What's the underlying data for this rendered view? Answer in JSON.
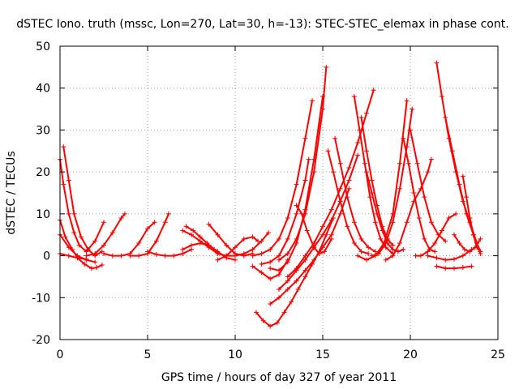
{
  "chart_data": {
    "type": "scatter",
    "title": "dSTEC Iono. truth (mssc, Lon=270, Lat=30, h=-13): STEC-STEC_elemax in phase cont.",
    "xlabel": "GPS time / hours of day 327 of year 2011",
    "ylabel": "dSTEC  / TECUs",
    "xlim": [
      0,
      25
    ],
    "ylim": [
      -20,
      50
    ],
    "xticks": [
      0,
      5,
      10,
      15,
      20,
      25
    ],
    "yticks": [
      -20,
      -10,
      0,
      10,
      20,
      30,
      40,
      50
    ],
    "grid": true,
    "legend": "none",
    "series_color": "#ff0000",
    "marker": "plus",
    "series": [
      {
        "x": [
          0.0,
          0.2,
          0.5,
          0.8,
          1.1,
          1.5,
          2.0,
          2.5
        ],
        "y": [
          23.0,
          17.0,
          10.0,
          5.5,
          2.5,
          1.0,
          3.5,
          8.0
        ]
      },
      {
        "x": [
          0.2,
          0.5,
          0.8,
          1.2,
          1.6,
          2.0,
          2.4
        ],
        "y": [
          26.0,
          18.0,
          10.0,
          4.5,
          1.5,
          0.0,
          1.0
        ]
      },
      {
        "x": [
          0.0,
          0.3,
          0.7,
          1.0,
          1.4,
          1.8,
          2.1,
          2.4
        ],
        "y": [
          8.5,
          4.5,
          1.5,
          -0.5,
          -2.0,
          -3.0,
          -2.8,
          -2.2
        ]
      },
      {
        "x": [
          0.0,
          0.5,
          1.0,
          1.5,
          2.0
        ],
        "y": [
          5.0,
          2.0,
          0.0,
          -1.0,
          -1.5
        ]
      },
      {
        "x": [
          0.0,
          0.5,
          1.0,
          1.5
        ],
        "y": [
          0.5,
          0.0,
          -0.5,
          -0.8
        ]
      },
      {
        "x": [
          1.5,
          2.0,
          2.5,
          3.0,
          3.5,
          3.7
        ],
        "y": [
          0.0,
          0.5,
          2.5,
          5.5,
          9.0,
          10.0
        ]
      },
      {
        "x": [
          2.5,
          3.0,
          3.5,
          4.0,
          4.5,
          5.0,
          5.4
        ],
        "y": [
          0.5,
          0.0,
          0.0,
          0.5,
          3.0,
          6.5,
          8.0
        ]
      },
      {
        "x": [
          4.0,
          4.5,
          5.0,
          5.5,
          6.0,
          6.2
        ],
        "y": [
          0.0,
          0.0,
          0.5,
          3.5,
          8.0,
          10.0
        ]
      },
      {
        "x": [
          5.0,
          5.5,
          6.0,
          6.5,
          7.0,
          7.5
        ],
        "y": [
          1.0,
          0.3,
          0.0,
          0.0,
          0.5,
          1.5
        ]
      },
      {
        "x": [
          7.0,
          7.5,
          8.0,
          8.5,
          9.0,
          9.5,
          10.0
        ],
        "y": [
          6.0,
          5.0,
          3.5,
          2.0,
          0.5,
          0.0,
          0.0
        ]
      },
      {
        "x": [
          7.2,
          7.6,
          8.0,
          8.4,
          8.8
        ],
        "y": [
          7.0,
          6.0,
          4.5,
          3.0,
          1.5
        ]
      },
      {
        "x": [
          8.5,
          9.0,
          9.5,
          10.0,
          10.5,
          11.0
        ],
        "y": [
          7.5,
          5.0,
          2.5,
          0.5,
          0.0,
          0.5
        ]
      },
      {
        "x": [
          7.0,
          7.5,
          8.0,
          8.5,
          9.0,
          9.5,
          10.0
        ],
        "y": [
          1.5,
          2.5,
          3.0,
          2.5,
          1.0,
          -0.5,
          -1.0
        ]
      },
      {
        "x": [
          9.0,
          9.5,
          10.0,
          10.5,
          11.0,
          11.3
        ],
        "y": [
          -1.0,
          0.0,
          2.0,
          4.0,
          4.5,
          3.5
        ]
      },
      {
        "x": [
          10.0,
          10.5,
          11.0,
          11.5,
          11.9
        ],
        "y": [
          0.0,
          0.5,
          1.5,
          3.5,
          5.5
        ]
      },
      {
        "x": [
          11.0,
          11.5,
          12.0,
          12.5,
          13.0,
          13.5,
          14.0,
          14.4
        ],
        "y": [
          0.0,
          0.5,
          1.5,
          4.0,
          9.0,
          17.0,
          28.0,
          37.0
        ]
      },
      {
        "x": [
          11.5,
          12.0,
          12.5,
          13.0,
          13.5,
          14.0,
          14.2
        ],
        "y": [
          -2.0,
          -1.5,
          0.0,
          4.0,
          10.0,
          18.0,
          23.0
        ]
      },
      {
        "x": [
          12.0,
          12.5,
          13.0,
          13.5,
          14.0,
          14.5,
          15.0
        ],
        "y": [
          -3.0,
          -3.5,
          -1.5,
          3.0,
          11.0,
          23.0,
          38.0
        ]
      },
      {
        "x": [
          12.5,
          13.0,
          13.5,
          14.0,
          14.5,
          15.0,
          15.2
        ],
        "y": [
          -1.0,
          0.5,
          4.0,
          10.0,
          20.0,
          35.0,
          45.0
        ]
      },
      {
        "x": [
          11.0,
          11.5,
          12.0,
          12.5,
          13.0
        ],
        "y": [
          -2.5,
          -4.0,
          -5.5,
          -4.5,
          -1.0
        ]
      },
      {
        "x": [
          11.2,
          11.6,
          12.0,
          12.4,
          12.8,
          13.2,
          13.6,
          14.0,
          14.4,
          14.8,
          15.2,
          15.6
        ],
        "y": [
          -13.5,
          -15.5,
          -16.8,
          -16.0,
          -13.5,
          -11.0,
          -8.0,
          -5.0,
          -2.0,
          1.0,
          5.0,
          9.0
        ]
      },
      {
        "x": [
          12.0,
          12.5,
          13.0,
          13.5,
          14.0,
          14.5,
          15.0,
          15.5,
          16.0,
          16.5
        ],
        "y": [
          -11.5,
          -10.0,
          -8.0,
          -6.0,
          -3.5,
          -1.0,
          2.0,
          5.0,
          10.0,
          16.0
        ]
      },
      {
        "x": [
          12.5,
          13.0,
          13.5,
          14.0,
          14.5,
          15.0,
          15.5,
          16.0,
          16.5,
          17.0
        ],
        "y": [
          -8.0,
          -6.0,
          -3.5,
          -1.0,
          2.0,
          5.0,
          8.5,
          13.0,
          18.0,
          24.0
        ]
      },
      {
        "x": [
          13.0,
          13.5,
          14.0,
          14.5,
          15.0,
          15.5,
          16.0,
          16.5,
          17.0,
          17.5,
          17.9
        ],
        "y": [
          -5.0,
          -3.0,
          0.0,
          3.0,
          7.0,
          11.0,
          16.0,
          21.0,
          27.0,
          34.0,
          39.5
        ]
      },
      {
        "x": [
          13.5,
          13.8,
          14.1,
          14.5,
          14.8,
          15.1,
          15.5
        ],
        "y": [
          12.0,
          10.0,
          6.0,
          2.0,
          0.5,
          1.0,
          4.0
        ]
      },
      {
        "x": [
          15.3,
          15.6,
          16.0,
          16.4,
          16.8,
          17.2,
          17.6
        ],
        "y": [
          25.0,
          20.0,
          13.0,
          7.0,
          3.0,
          1.0,
          0.5
        ]
      },
      {
        "x": [
          15.7,
          16.0,
          16.4,
          16.8,
          17.2,
          17.6,
          18.0
        ],
        "y": [
          28.0,
          22.0,
          14.0,
          8.0,
          4.0,
          2.0,
          1.0
        ]
      },
      {
        "x": [
          16.8,
          17.1,
          17.4,
          17.7,
          18.0,
          18.3,
          18.6,
          19.0
        ],
        "y": [
          38.0,
          30.0,
          22.0,
          14.0,
          8.0,
          4.0,
          2.0,
          0.5
        ]
      },
      {
        "x": [
          17.2,
          17.5,
          17.8,
          18.1,
          18.4,
          18.7,
          19.0
        ],
        "y": [
          33.0,
          25.0,
          18.0,
          12.0,
          7.0,
          4.0,
          2.5
        ]
      },
      {
        "x": [
          17.5,
          17.8,
          18.1,
          18.4,
          18.7,
          19.0,
          19.3,
          19.6
        ],
        "y": [
          20.0,
          15.0,
          10.0,
          6.0,
          3.0,
          1.5,
          1.0,
          1.5
        ]
      },
      {
        "x": [
          17.0,
          17.5,
          18.0,
          18.5,
          19.0,
          19.4,
          19.8
        ],
        "y": [
          0.0,
          -1.0,
          0.0,
          3.0,
          10.0,
          22.0,
          37.0
        ]
      },
      {
        "x": [
          17.8,
          18.2,
          18.6,
          19.0,
          19.4,
          19.8,
          20.1
        ],
        "y": [
          0.0,
          0.5,
          3.0,
          8.0,
          16.0,
          26.0,
          35.0
        ]
      },
      {
        "x": [
          18.6,
          19.0,
          19.4,
          19.8,
          20.2,
          20.6,
          21.0,
          21.2
        ],
        "y": [
          -1.0,
          0.0,
          3.0,
          8.0,
          13.0,
          16.0,
          20.0,
          23.0
        ]
      },
      {
        "x": [
          19.6,
          19.9,
          20.2,
          20.5,
          20.8,
          21.1,
          21.4
        ],
        "y": [
          28.0,
          22.0,
          15.0,
          9.0,
          4.0,
          1.5,
          1.0
        ]
      },
      {
        "x": [
          20.0,
          20.4,
          20.8,
          21.2,
          21.6,
          22.0
        ],
        "y": [
          30.0,
          22.0,
          14.0,
          8.0,
          5.0,
          3.5
        ]
      },
      {
        "x": [
          20.3,
          20.6,
          21.0,
          21.4,
          21.8,
          22.2,
          22.6
        ],
        "y": [
          0.0,
          0.0,
          1.0,
          3.0,
          6.0,
          9.0,
          10.0
        ]
      },
      {
        "x": [
          21.5,
          21.8,
          22.2,
          22.6,
          23.0,
          23.4,
          23.8,
          24.0
        ],
        "y": [
          46.0,
          38.0,
          28.0,
          20.0,
          13.0,
          8.0,
          3.0,
          0.5
        ]
      },
      {
        "x": [
          22.0,
          22.4,
          22.8,
          23.2,
          23.6,
          24.0
        ],
        "y": [
          33.0,
          25.0,
          17.0,
          10.0,
          5.0,
          1.0
        ]
      },
      {
        "x": [
          22.5,
          22.8,
          23.1,
          23.4,
          23.7,
          24.0
        ],
        "y": [
          5.0,
          3.0,
          1.5,
          1.0,
          2.0,
          4.0
        ]
      },
      {
        "x": [
          21.5,
          22.0,
          22.5,
          23.0,
          23.5
        ],
        "y": [
          -2.5,
          -3.0,
          -3.0,
          -2.8,
          -2.5
        ]
      },
      {
        "x": [
          21.0,
          21.5,
          22.0,
          22.5,
          23.0,
          23.5
        ],
        "y": [
          0.0,
          -0.5,
          -1.0,
          -0.8,
          0.0,
          1.5
        ]
      },
      {
        "x": [
          23.0,
          23.2,
          23.4,
          23.6,
          23.8,
          24.0
        ],
        "y": [
          19.0,
          14.0,
          9.0,
          5.0,
          2.0,
          1.0
        ]
      }
    ]
  }
}
